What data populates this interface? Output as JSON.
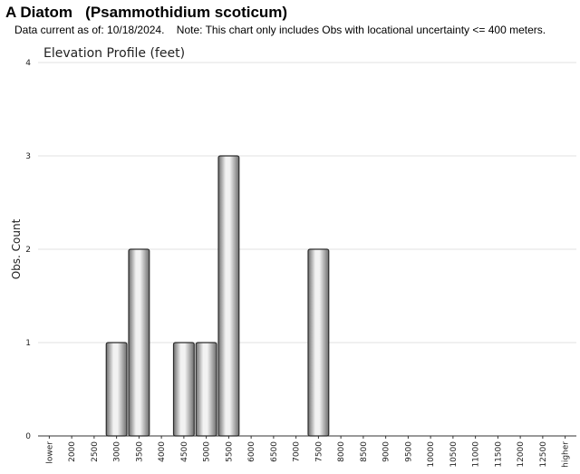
{
  "header": {
    "species_title": "A Diatom   (Psammothidium scoticum)",
    "data_note": "Data current as of: 10/18/2024.    Note: This chart only includes Obs with locational uncertainty <= 400 meters."
  },
  "chart_data": {
    "type": "bar",
    "title": "Elevation Profile (feet)",
    "xlabel": "",
    "ylabel": "Obs. Count",
    "ylim": [
      0,
      4
    ],
    "yticks": [
      "0",
      "1",
      "2",
      "3",
      "4"
    ],
    "grid": true,
    "legend": "none",
    "categories": [
      "lower",
      "2000",
      "2500",
      "3000",
      "3500",
      "4000",
      "4500",
      "5000",
      "5500",
      "6000",
      "6500",
      "7000",
      "7500",
      "8000",
      "8500",
      "9000",
      "9500",
      "10000",
      "10500",
      "11000",
      "11500",
      "12000",
      "12500",
      "higher"
    ],
    "values": [
      0,
      0,
      0,
      1,
      2,
      0,
      1,
      1,
      3,
      0,
      0,
      0,
      2,
      0,
      0,
      0,
      0,
      0,
      0,
      0,
      0,
      0,
      0,
      0
    ],
    "colors": {
      "bar_light": "#f2f2f2",
      "bar_dark": "#6e6e6e",
      "bar_stroke": "#2e2e2e",
      "grid": "#e0e0e0",
      "axis": "#333333",
      "text": "#222222"
    }
  }
}
